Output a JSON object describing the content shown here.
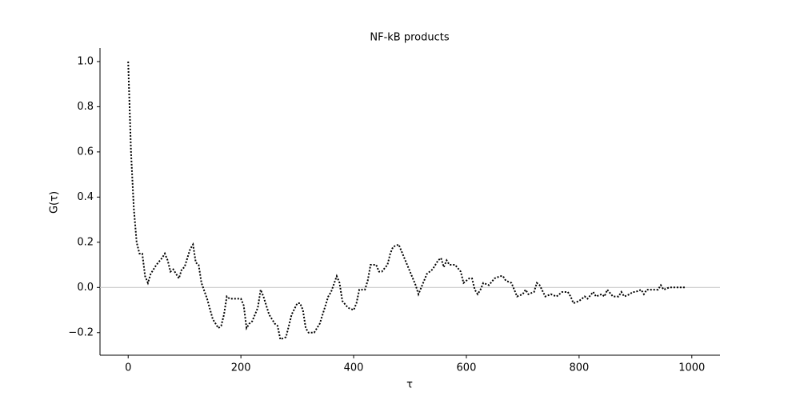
{
  "chart_data": {
    "type": "line",
    "title": "NF-kB products",
    "x_label": "τ",
    "y_label": "G(τ)",
    "x": [
      0,
      5,
      10,
      15,
      20,
      25,
      30,
      35,
      40,
      50,
      60,
      65,
      70,
      75,
      80,
      90,
      95,
      100,
      110,
      115,
      120,
      125,
      130,
      140,
      150,
      160,
      165,
      170,
      175,
      180,
      190,
      200,
      205,
      210,
      215,
      220,
      230,
      235,
      240,
      250,
      260,
      265,
      270,
      280,
      290,
      300,
      305,
      310,
      315,
      320,
      330,
      340,
      350,
      355,
      360,
      370,
      375,
      380,
      390,
      400,
      405,
      410,
      420,
      425,
      430,
      440,
      445,
      450,
      460,
      465,
      470,
      480,
      490,
      500,
      510,
      515,
      520,
      530,
      540,
      550,
      555,
      560,
      565,
      570,
      580,
      590,
      595,
      600,
      605,
      610,
      615,
      620,
      625,
      630,
      640,
      650,
      660,
      665,
      670,
      680,
      690,
      700,
      705,
      710,
      720,
      725,
      730,
      740,
      750,
      760,
      770,
      780,
      785,
      790,
      800,
      810,
      815,
      825,
      830,
      840,
      845,
      850,
      860,
      870,
      875,
      880,
      890,
      895,
      900,
      910,
      915,
      920,
      930,
      940,
      945,
      950,
      960,
      970,
      980,
      990
    ],
    "values": [
      1.0,
      0.6,
      0.35,
      0.2,
      0.15,
      0.15,
      0.05,
      0.02,
      0.06,
      0.1,
      0.13,
      0.15,
      0.12,
      0.07,
      0.08,
      0.04,
      0.08,
      0.09,
      0.17,
      0.19,
      0.11,
      0.1,
      0.02,
      -0.05,
      -0.14,
      -0.18,
      -0.17,
      -0.12,
      -0.04,
      -0.05,
      -0.05,
      -0.05,
      -0.08,
      -0.18,
      -0.16,
      -0.15,
      -0.09,
      -0.01,
      -0.04,
      -0.12,
      -0.16,
      -0.17,
      -0.23,
      -0.22,
      -0.12,
      -0.07,
      -0.07,
      -0.1,
      -0.18,
      -0.2,
      -0.2,
      -0.16,
      -0.08,
      -0.04,
      -0.02,
      0.05,
      0.02,
      -0.06,
      -0.09,
      -0.1,
      -0.07,
      -0.01,
      -0.01,
      0.03,
      0.1,
      0.1,
      0.07,
      0.07,
      0.1,
      0.15,
      0.18,
      0.19,
      0.13,
      0.07,
      0.01,
      -0.03,
      0.0,
      0.06,
      0.08,
      0.12,
      0.13,
      0.09,
      0.12,
      0.1,
      0.1,
      0.07,
      0.02,
      0.03,
      0.04,
      0.04,
      -0.01,
      -0.03,
      -0.01,
      0.02,
      0.01,
      0.04,
      0.05,
      0.05,
      0.03,
      0.02,
      -0.04,
      -0.03,
      -0.01,
      -0.03,
      -0.02,
      0.02,
      0.01,
      -0.04,
      -0.03,
      -0.04,
      -0.02,
      -0.02,
      -0.04,
      -0.07,
      -0.06,
      -0.04,
      -0.05,
      -0.02,
      -0.04,
      -0.03,
      -0.04,
      -0.01,
      -0.04,
      -0.04,
      -0.02,
      -0.04,
      -0.03,
      -0.02,
      -0.02,
      -0.01,
      -0.03,
      -0.01,
      -0.01,
      -0.01,
      0.01,
      -0.01,
      0.0,
      0.0,
      0.0,
      0.0
    ],
    "color": "#000000",
    "line_style": "dotted",
    "hline": 0,
    "hline_color": "#cccccc",
    "xlim": [
      -50,
      1050
    ],
    "xticks": [
      0,
      200,
      400,
      600,
      800,
      1000
    ],
    "ylim": [
      -0.3,
      1.06
    ],
    "yticks": [
      {
        "value": -0.2,
        "label": "−0.2"
      },
      {
        "value": 0,
        "label": "0.0"
      },
      {
        "value": 0.2,
        "label": "0.2"
      },
      {
        "value": 0.4,
        "label": "0.4"
      },
      {
        "value": 0.6,
        "label": "0.6"
      },
      {
        "value": 0.8,
        "label": "0.8"
      },
      {
        "value": 1.0,
        "label": "1.0"
      }
    ],
    "grid": false
  }
}
